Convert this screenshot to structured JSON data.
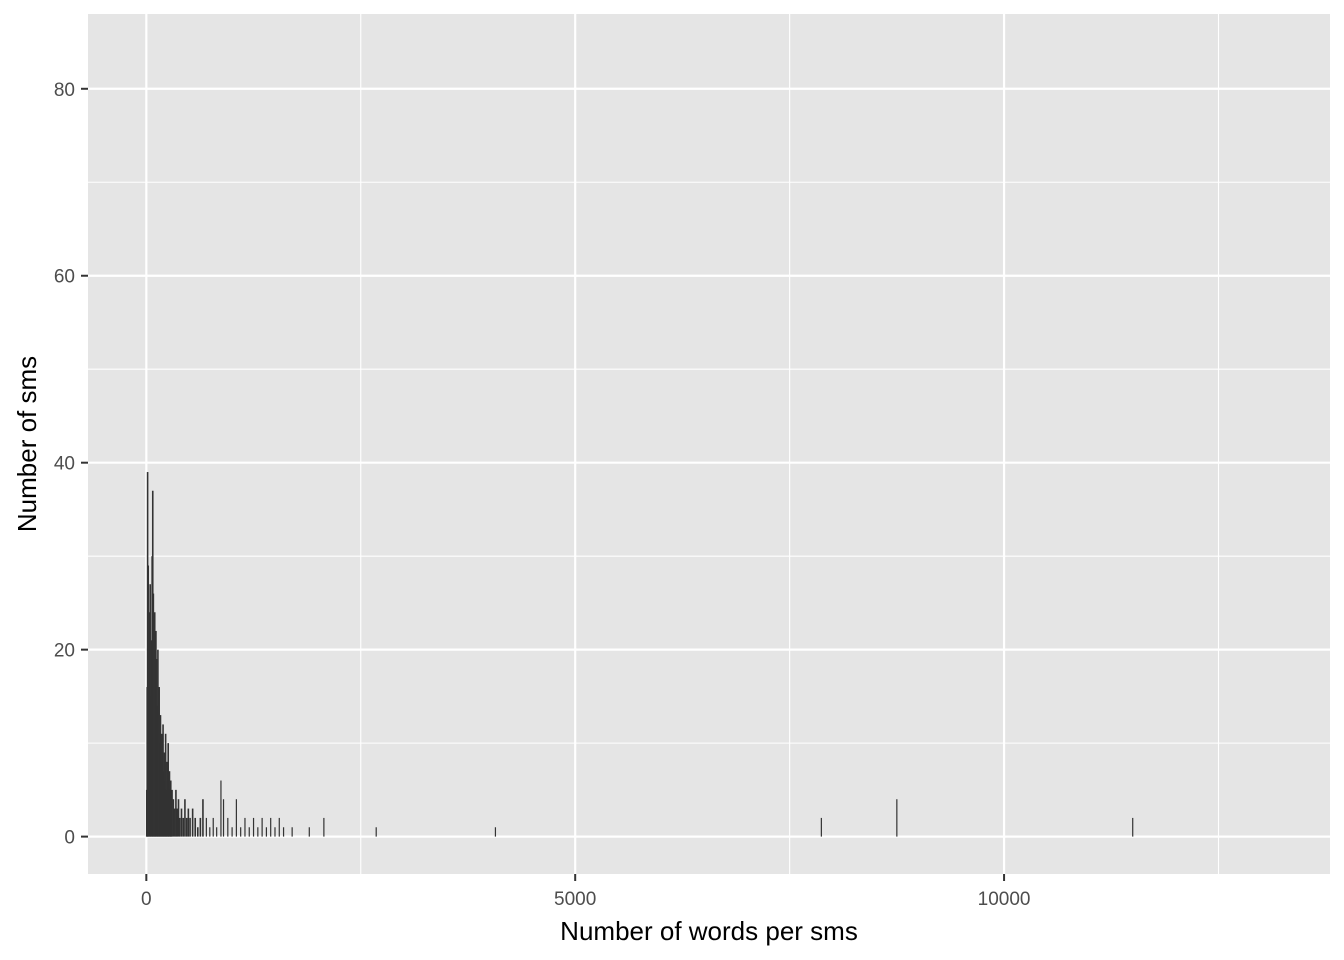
{
  "chart_data": {
    "type": "bar",
    "title": "",
    "xlabel": "Number of words per sms",
    "ylabel": "Number of sms",
    "xlim": [
      -680,
      13800
    ],
    "ylim": [
      -4,
      88
    ],
    "x_ticks": [
      0,
      5000,
      10000
    ],
    "x_tick_labels": [
      "0",
      "5000",
      "10000"
    ],
    "y_ticks": [
      0,
      20,
      40,
      60,
      80
    ],
    "y_tick_labels": [
      "0",
      "20",
      "40",
      "60",
      "80"
    ],
    "grid": true,
    "legend": "none",
    "colors": {
      "panel": "#e5e5e5",
      "grid": "#ffffff",
      "bar": "#333333",
      "bar_faint": "#d6d6d6"
    },
    "bars": [
      {
        "x": 5,
        "y": 5
      },
      {
        "x": 10,
        "y": 16
      },
      {
        "x": 15,
        "y": 39
      },
      {
        "x": 22,
        "y": 29
      },
      {
        "x": 30,
        "y": 18
      },
      {
        "x": 38,
        "y": 24
      },
      {
        "x": 45,
        "y": 27
      },
      {
        "x": 52,
        "y": 15
      },
      {
        "x": 60,
        "y": 21
      },
      {
        "x": 68,
        "y": 30
      },
      {
        "x": 75,
        "y": 37
      },
      {
        "x": 82,
        "y": 26
      },
      {
        "x": 90,
        "y": 20
      },
      {
        "x": 98,
        "y": 24
      },
      {
        "x": 105,
        "y": 17
      },
      {
        "x": 112,
        "y": 22
      },
      {
        "x": 120,
        "y": 19
      },
      {
        "x": 128,
        "y": 14
      },
      {
        "x": 135,
        "y": 20
      },
      {
        "x": 142,
        "y": 12
      },
      {
        "x": 150,
        "y": 16
      },
      {
        "x": 158,
        "y": 10
      },
      {
        "x": 165,
        "y": 13
      },
      {
        "x": 172,
        "y": 9
      },
      {
        "x": 180,
        "y": 11
      },
      {
        "x": 188,
        "y": 8
      },
      {
        "x": 195,
        "y": 12
      },
      {
        "x": 202,
        "y": 7
      },
      {
        "x": 210,
        "y": 9
      },
      {
        "x": 218,
        "y": 6
      },
      {
        "x": 225,
        "y": 11
      },
      {
        "x": 232,
        "y": 5
      },
      {
        "x": 240,
        "y": 8
      },
      {
        "x": 248,
        "y": 6
      },
      {
        "x": 255,
        "y": 10
      },
      {
        "x": 262,
        "y": 4
      },
      {
        "x": 270,
        "y": 7
      },
      {
        "x": 278,
        "y": 5
      },
      {
        "x": 285,
        "y": 6
      },
      {
        "x": 292,
        "y": 4
      },
      {
        "x": 300,
        "y": 5
      },
      {
        "x": 315,
        "y": 4
      },
      {
        "x": 330,
        "y": 3
      },
      {
        "x": 345,
        "y": 5
      },
      {
        "x": 360,
        "y": 3
      },
      {
        "x": 375,
        "y": 4
      },
      {
        "x": 390,
        "y": 2
      },
      {
        "x": 410,
        "y": 3
      },
      {
        "x": 430,
        "y": 2
      },
      {
        "x": 450,
        "y": 4
      },
      {
        "x": 470,
        "y": 2
      },
      {
        "x": 490,
        "y": 3
      },
      {
        "x": 510,
        "y": 2
      },
      {
        "x": 540,
        "y": 3
      },
      {
        "x": 570,
        "y": 2
      },
      {
        "x": 600,
        "y": 1
      },
      {
        "x": 630,
        "y": 2
      },
      {
        "x": 660,
        "y": 4
      },
      {
        "x": 700,
        "y": 2
      },
      {
        "x": 740,
        "y": 1
      },
      {
        "x": 780,
        "y": 2
      },
      {
        "x": 820,
        "y": 1
      },
      {
        "x": 870,
        "y": 6
      },
      {
        "x": 900,
        "y": 4
      },
      {
        "x": 950,
        "y": 2
      },
      {
        "x": 1000,
        "y": 1
      },
      {
        "x": 1050,
        "y": 4
      },
      {
        "x": 1100,
        "y": 1
      },
      {
        "x": 1150,
        "y": 2
      },
      {
        "x": 1200,
        "y": 1
      },
      {
        "x": 1250,
        "y": 2
      },
      {
        "x": 1300,
        "y": 1
      },
      {
        "x": 1350,
        "y": 2
      },
      {
        "x": 1400,
        "y": 1
      },
      {
        "x": 1450,
        "y": 2
      },
      {
        "x": 1500,
        "y": 1
      },
      {
        "x": 1550,
        "y": 2
      },
      {
        "x": 1600,
        "y": 1
      },
      {
        "x": 1700,
        "y": 1
      },
      {
        "x": 1900,
        "y": 1
      },
      {
        "x": 2070,
        "y": 2
      },
      {
        "x": 2680,
        "y": 1
      },
      {
        "x": 4070,
        "y": 1
      },
      {
        "x": 7870,
        "y": 2
      },
      {
        "x": 8750,
        "y": 4
      },
      {
        "x": 11500,
        "y": 2
      }
    ]
  }
}
